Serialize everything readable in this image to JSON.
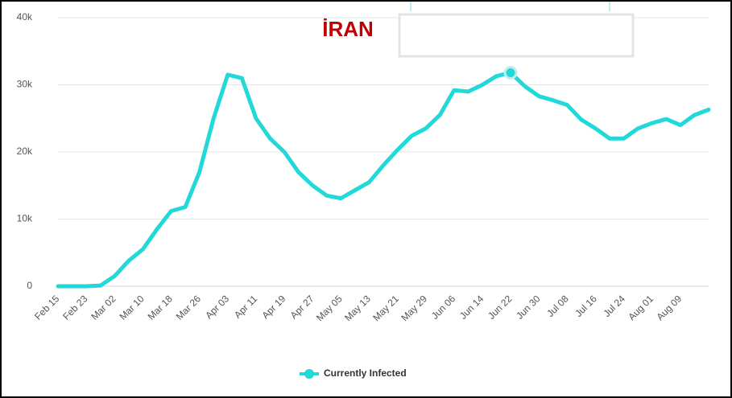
{
  "chart_data": {
    "type": "line",
    "title": "İRAN",
    "categories": [
      "Feb 15",
      null,
      "Feb 23",
      null,
      "Mar 02",
      null,
      "Mar 10",
      null,
      "Mar 18",
      null,
      "Mar 26",
      null,
      "Apr 03",
      null,
      "Apr 11",
      null,
      "Apr 19",
      null,
      "Apr 27",
      null,
      "May 05",
      null,
      "May 13",
      null,
      "May 21",
      null,
      "May 29",
      null,
      "Jun 06",
      null,
      "Jun 14",
      null,
      "Jun 22",
      null,
      "Jun 30",
      null,
      "Jul 08",
      null,
      "Jul 16",
      null,
      "Jul 24",
      null,
      "Aug 01",
      null,
      "Aug 09",
      null,
      null
    ],
    "series": [
      {
        "name": "Currently Infected",
        "color": "#22d8d8",
        "values": [
          0,
          0,
          0,
          100,
          1500,
          3800,
          5500,
          8500,
          11200,
          11800,
          17000,
          25000,
          31500,
          31000,
          25000,
          22000,
          20000,
          17000,
          15000,
          13500,
          13100,
          14300,
          15500,
          18000,
          20300,
          22400,
          23500,
          25500,
          29200,
          29000,
          30000,
          31300,
          31800,
          29800,
          28300,
          27700,
          27000,
          24800,
          23500,
          22000,
          22000,
          23500,
          24300,
          24900,
          24000,
          25500,
          26300
        ]
      }
    ],
    "ylim": [
      0,
      40000
    ],
    "yticks": [
      0,
      {
        "value": 10000,
        "label": "10k"
      },
      {
        "value": 20000,
        "label": "20k"
      },
      {
        "value": 30000,
        "label": "30k"
      },
      {
        "value": 40000,
        "label": "40k"
      }
    ],
    "grid": true
  }
}
